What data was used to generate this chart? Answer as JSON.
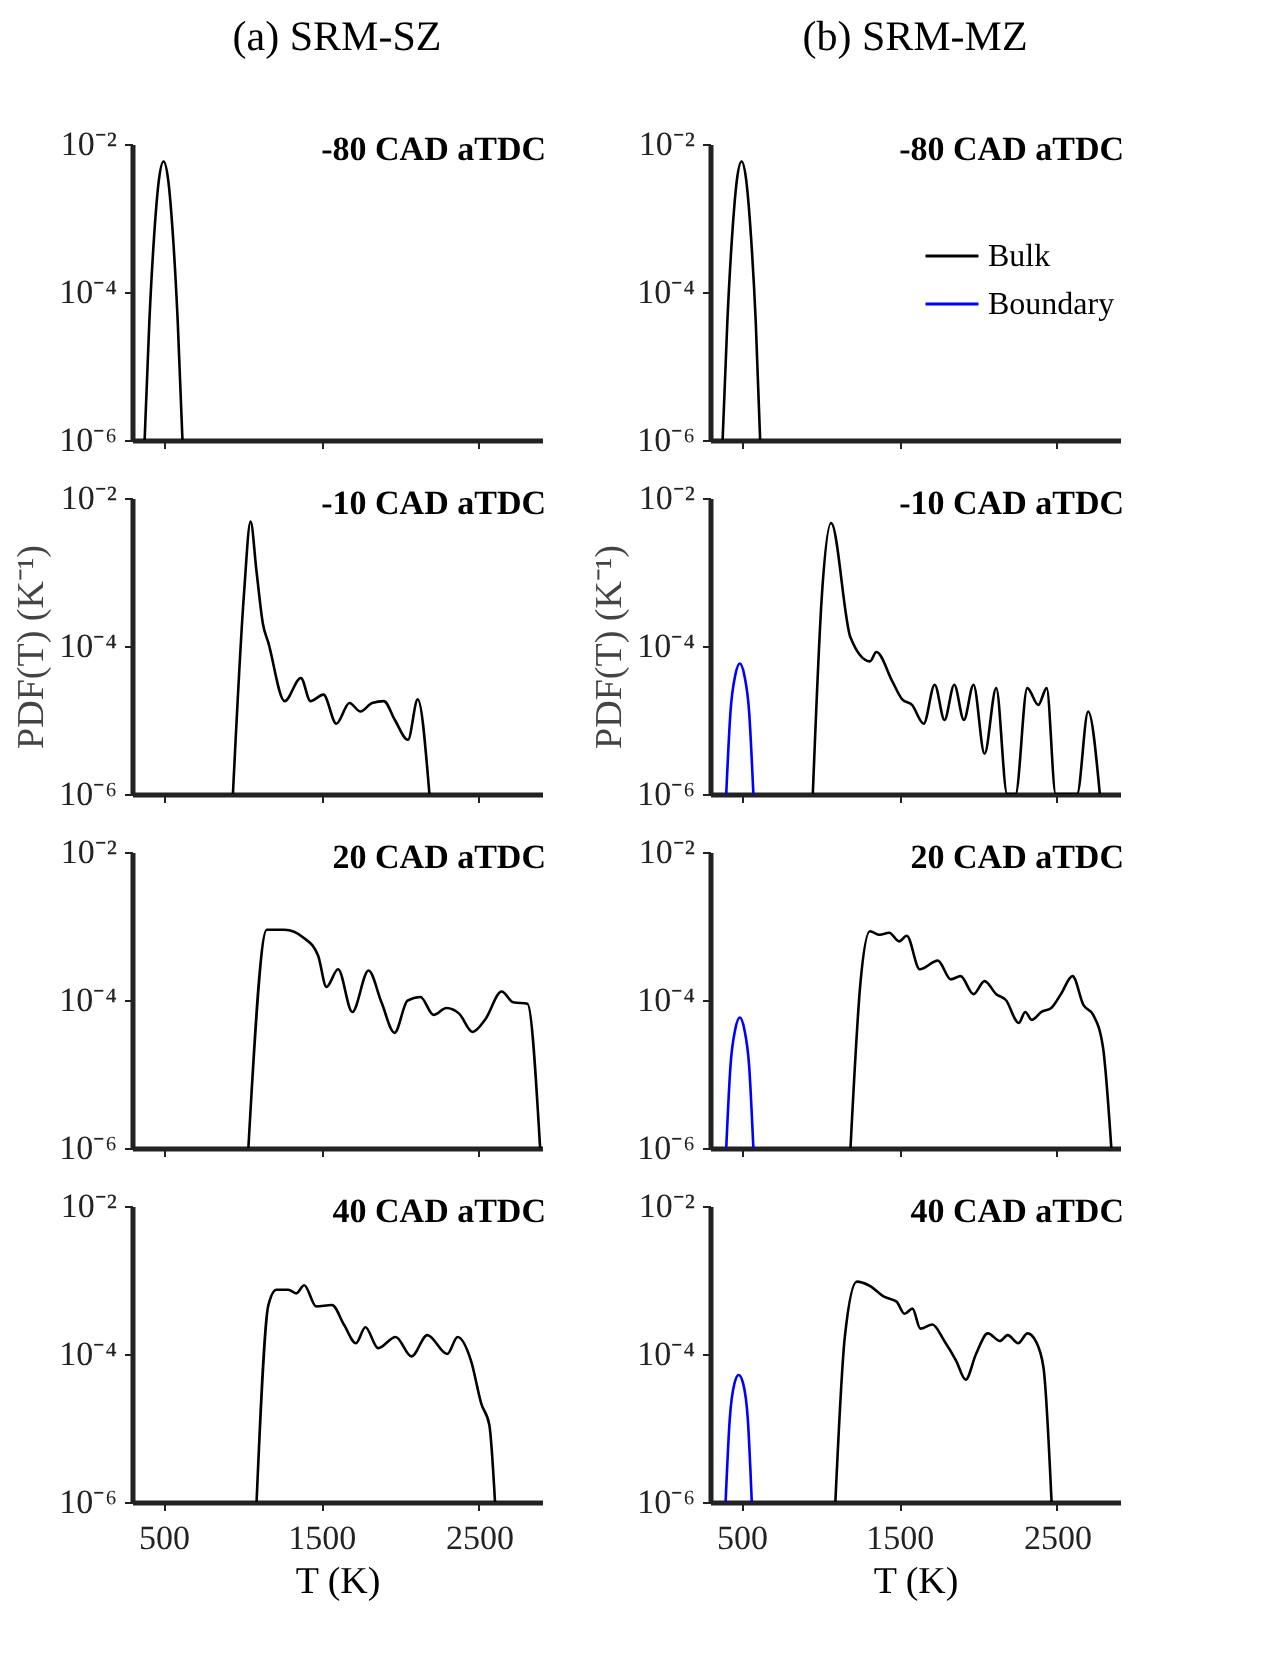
{
  "chart_data": [
    {
      "type": "line",
      "title": "(a) SRM-SZ",
      "annotations": [
        "-80 CAD aTDC"
      ],
      "xlim": [
        300,
        2900
      ],
      "xticks": [
        500,
        1500,
        2500
      ],
      "ylim": [
        1e-06,
        0.01
      ],
      "yticks": [
        {
          "value": 1e-06,
          "label": "10⁻⁶"
        },
        {
          "value": 0.0001,
          "label": "10⁻⁴"
        },
        {
          "value": 0.01,
          "label": "10⁻²"
        }
      ],
      "log": "y",
      "tick_labels": "y",
      "series": [
        {
          "color": "#000000",
          "x": [
            380,
            410,
            440,
            470,
            500,
            530,
            560,
            590,
            620
          ],
          "values": [
            1e-06,
            4e-05,
            0.00056,
            0.0032,
            0.0058,
            0.0032,
            0.00056,
            4e-05,
            1e-06
          ]
        }
      ]
    },
    {
      "type": "line",
      "title": "(b) SRM-MZ",
      "annotations": [
        "-80 CAD aTDC"
      ],
      "xlim": [
        300,
        2900
      ],
      "xticks": [
        500,
        1500,
        2500
      ],
      "ylim": [
        1e-06,
        0.01
      ],
      "yticks": [
        {
          "value": 1e-06,
          "label": "10⁻⁶"
        },
        {
          "value": 0.0001,
          "label": "10⁻⁴"
        },
        {
          "value": 0.01,
          "label": "10⁻²"
        }
      ],
      "log": "y",
      "tick_labels": "y",
      "legend": "top right",
      "series": [
        {
          "name": "Bulk",
          "color": "#000000",
          "x": [
            380,
            410,
            440,
            470,
            500,
            530,
            560,
            590,
            618
          ],
          "values": [
            1e-06,
            4e-05,
            0.00056,
            0.0032,
            0.0058,
            0.0032,
            0.00056,
            4e-05,
            1e-06
          ]
        },
        {
          "name": "Boundary",
          "color": "#0000ff"
        }
      ]
    },
    {
      "type": "line",
      "annotations": [
        "-10 CAD aTDC"
      ],
      "ylabel": "PDF(T) (K⁻¹)",
      "xlim": [
        300,
        2900
      ],
      "xticks": [
        500,
        1500,
        2500
      ],
      "ylim": [
        1e-06,
        0.01
      ],
      "yticks": [
        {
          "value": 1e-06,
          "label": "10⁻⁶"
        },
        {
          "value": 0.0001,
          "label": "10⁻⁴"
        },
        {
          "value": 0.01,
          "label": "10⁻²"
        }
      ],
      "log": "y",
      "tick_labels": "y",
      "series": [
        {
          "color": "#000000",
          "x": [
            940,
            1010,
            1052,
            1090,
            1130,
            1165,
            1268,
            1371,
            1432,
            1514,
            1596,
            1679,
            1749,
            1823,
            1897,
            1967,
            2050,
            2112,
            2186
          ],
          "values": [
            1e-06,
            0.0005,
            0.0048,
            0.001,
            0.0002,
            0.00011,
            1.8e-05,
            3.7e-05,
            1.8e-05,
            2.2e-05,
            8.9e-06,
            1.7e-05,
            1.3e-05,
            1.7e-05,
            1.8e-05,
            1e-05,
            5.4e-06,
            1.9e-05,
            1e-06
          ]
        }
      ]
    },
    {
      "type": "line",
      "annotations": [
        "-10 CAD aTDC"
      ],
      "ylabel": "PDF(T) (K⁻¹)",
      "xlim": [
        300,
        2900
      ],
      "xticks": [
        500,
        1500,
        2500
      ],
      "ylim": [
        1e-06,
        0.01
      ],
      "yticks": [
        {
          "value": 1e-06,
          "label": "10⁻⁶"
        },
        {
          "value": 0.0001,
          "label": "10⁻⁴"
        },
        {
          "value": 0.01,
          "label": "10⁻²"
        }
      ],
      "log": "y",
      "tick_labels": "y",
      "series": [
        {
          "color": "#000000",
          "x": [
            952,
            1010,
            1068,
            1191,
            1314,
            1355,
            1457,
            1519,
            1581,
            1655,
            1725,
            1787,
            1849,
            1910,
            1971,
            2041,
            2115,
            2184,
            2238,
            2312,
            2382,
            2435,
            2492,
            2628,
            2698,
            2772
          ],
          "values": [
            1e-06,
            0.0005,
            0.0046,
            0.00013,
            6.2e-05,
            8.3e-05,
            3.3e-05,
            1.9e-05,
            1.6e-05,
            8.9e-06,
            3e-05,
            1e-05,
            3e-05,
            1e-05,
            3e-05,
            3.5e-06,
            2.7e-05,
            1e-06,
            1e-06,
            2.7e-05,
            1.6e-05,
            2.7e-05,
            1e-06,
            1e-06,
            1.3e-05,
            1e-06
          ]
        },
        {
          "color": "#0000ff",
          "x": [
            403,
            430,
            460,
            489,
            518,
            548,
            575
          ],
          "values": [
            1e-06,
            1.3e-05,
            4e-05,
            5.8e-05,
            4e-05,
            1.3e-05,
            1e-06
          ]
        }
      ]
    },
    {
      "type": "line",
      "annotations": [
        "20 CAD aTDC"
      ],
      "xlim": [
        300,
        2900
      ],
      "xticks": [
        500,
        1500,
        2500
      ],
      "ylim": [
        1e-06,
        0.01
      ],
      "yticks": [
        {
          "value": 1e-06,
          "label": "10⁻⁶"
        },
        {
          "value": 0.0001,
          "label": "10⁻⁴"
        },
        {
          "value": 0.01,
          "label": "10⁻²"
        }
      ],
      "log": "y",
      "tick_labels": "y",
      "series": [
        {
          "color": "#000000",
          "x": [
            1038,
            1155,
            1266,
            1390,
            1480,
            1533,
            1607,
            1697,
            1800,
            1882,
            1965,
            2047,
            2129,
            2212,
            2294,
            2376,
            2459,
            2541,
            2644,
            2718,
            2808,
            2888
          ],
          "values": [
            1e-06,
            0.00089,
            0.00089,
            0.00069,
            0.0004,
            0.00015,
            0.00026,
            6.9e-05,
            0.00025,
            9.3e-05,
            3.6e-05,
            9.8e-05,
            0.00011,
            6.3e-05,
            7.8e-05,
            6.5e-05,
            3.7e-05,
            5.5e-05,
            0.00013,
            9.3e-05,
            8.9e-05,
            1e-06
          ]
        }
      ]
    },
    {
      "type": "line",
      "annotations": [
        "20 CAD aTDC"
      ],
      "xlim": [
        300,
        2900
      ],
      "xticks": [
        500,
        1500,
        2500
      ],
      "ylim": [
        1e-06,
        0.01
      ],
      "yticks": [
        {
          "value": 1e-06,
          "label": "10⁻⁶"
        },
        {
          "value": 0.0001,
          "label": "10⁻⁴"
        },
        {
          "value": 0.01,
          "label": "10⁻²"
        }
      ],
      "log": "y",
      "tick_labels": "y",
      "series": [
        {
          "color": "#000000",
          "x": [
            1191,
            1254,
            1314,
            1376,
            1437,
            1499,
            1548,
            1630,
            1745,
            1827,
            1889,
            1971,
            2041,
            2115,
            2176,
            2258,
            2299,
            2340,
            2402,
            2464,
            2525,
            2599,
            2669,
            2730,
            2792,
            2845
          ],
          "values": [
            1e-06,
            0.00017,
            0.00085,
            0.00076,
            0.00081,
            0.00062,
            0.00074,
            0.00026,
            0.00034,
            0.00019,
            0.00021,
            0.00012,
            0.00018,
            0.00012,
            0.0001,
            4.9e-05,
            6.9e-05,
            5.4e-05,
            6.9e-05,
            7.8e-05,
            0.00012,
            0.00021,
            8.5e-05,
            6.3e-05,
            2.3e-05,
            1e-06
          ]
        },
        {
          "color": "#0000ff",
          "x": [
            403,
            430,
            460,
            489,
            518,
            548,
            575
          ],
          "values": [
            1e-06,
            1.3e-05,
            4e-05,
            5.8e-05,
            4e-05,
            1.3e-05,
            1e-06
          ]
        }
      ]
    },
    {
      "type": "line",
      "annotations": [
        "40 CAD aTDC"
      ],
      "xlabel": "T (K)",
      "xlim": [
        300,
        2900
      ],
      "xticks": [
        500,
        1500,
        2500
      ],
      "ylim": [
        1e-06,
        0.01
      ],
      "yticks": [
        {
          "value": 1e-06,
          "label": "10⁻⁶"
        },
        {
          "value": 0.0001,
          "label": "10⁻⁴"
        },
        {
          "value": 0.01,
          "label": "10⁻²"
        }
      ],
      "log": "y",
      "series": [
        {
          "color": "#000000",
          "x": [
            1090,
            1165,
            1216,
            1291,
            1342,
            1392,
            1468,
            1568,
            1644,
            1720,
            1780,
            1861,
            1972,
            2072,
            2173,
            2299,
            2365,
            2450,
            2516,
            2566,
            2602
          ],
          "values": [
            1e-06,
            0.00046,
            0.00074,
            0.00074,
            0.00066,
            0.00085,
            0.00044,
            0.00046,
            0.00025,
            0.00014,
            0.00023,
            0.00012,
            0.00017,
            9.3e-05,
            0.00018,
            0.0001,
            0.00017,
            8.1e-05,
            2.1e-05,
            1.1e-05,
            1e-06
          ]
        }
      ]
    },
    {
      "type": "line",
      "annotations": [
        "40 CAD aTDC"
      ],
      "xlabel": "T (K)",
      "xlim": [
        300,
        2900
      ],
      "xticks": [
        500,
        1500,
        2500
      ],
      "ylim": [
        1e-06,
        0.01
      ],
      "yticks": [
        {
          "value": 1e-06,
          "label": "10⁻⁶"
        },
        {
          "value": 0.0001,
          "label": "10⁻⁴"
        },
        {
          "value": 0.01,
          "label": "10⁻²"
        }
      ],
      "log": "y",
      "series": [
        {
          "color": "#000000",
          "x": [
            1095,
            1155,
            1231,
            1306,
            1407,
            1483,
            1533,
            1584,
            1634,
            1710,
            1786,
            1861,
            1921,
            1987,
            2062,
            2138,
            2188,
            2254,
            2314,
            2365,
            2415,
            2466
          ],
          "values": [
            1e-06,
            0.00017,
            0.00095,
            0.00085,
            0.00059,
            0.00051,
            0.00035,
            0.00041,
            0.00022,
            0.00025,
            0.00015,
            8.1e-05,
            4.5e-05,
            0.0001,
            0.00019,
            0.00015,
            0.00018,
            0.00014,
            0.00019,
            0.00015,
            6.5e-05,
            1e-06
          ]
        },
        {
          "color": "#0000ff",
          "x": [
            399,
            425,
            455,
            482,
            510,
            540,
            565
          ],
          "values": [
            1e-06,
            1.3e-05,
            4e-05,
            5.2e-05,
            4e-05,
            1.3e-05,
            1e-06
          ]
        }
      ]
    }
  ]
}
